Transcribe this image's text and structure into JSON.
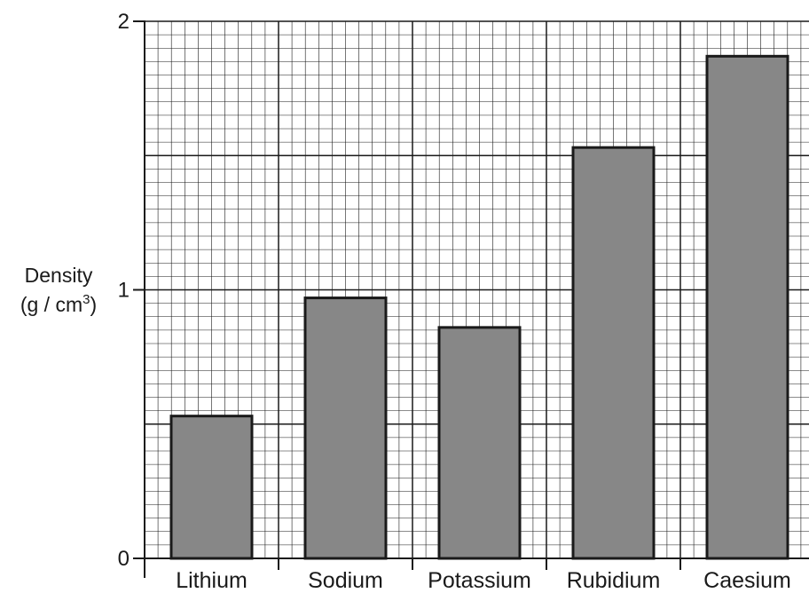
{
  "chart_data": {
    "type": "bar",
    "categories": [
      "Lithium",
      "Sodium",
      "Potassium",
      "Rubidium",
      "Caesium"
    ],
    "values": [
      0.53,
      0.97,
      0.86,
      1.53,
      1.87
    ],
    "ylabel_line1": "Density",
    "ylabel_unit_prefix": "(g / cm",
    "ylabel_unit_sup": "3",
    "ylabel_unit_suffix": ")",
    "ylim": [
      0,
      2
    ],
    "yticks": [
      {
        "value": 0,
        "label": "0"
      },
      {
        "value": 1,
        "label": "1"
      },
      {
        "value": 2,
        "label": "2"
      }
    ],
    "grid": true,
    "colors": {
      "bar": "#878787",
      "grid": "#1a1a1a",
      "axis": "#1a1a1a"
    }
  }
}
